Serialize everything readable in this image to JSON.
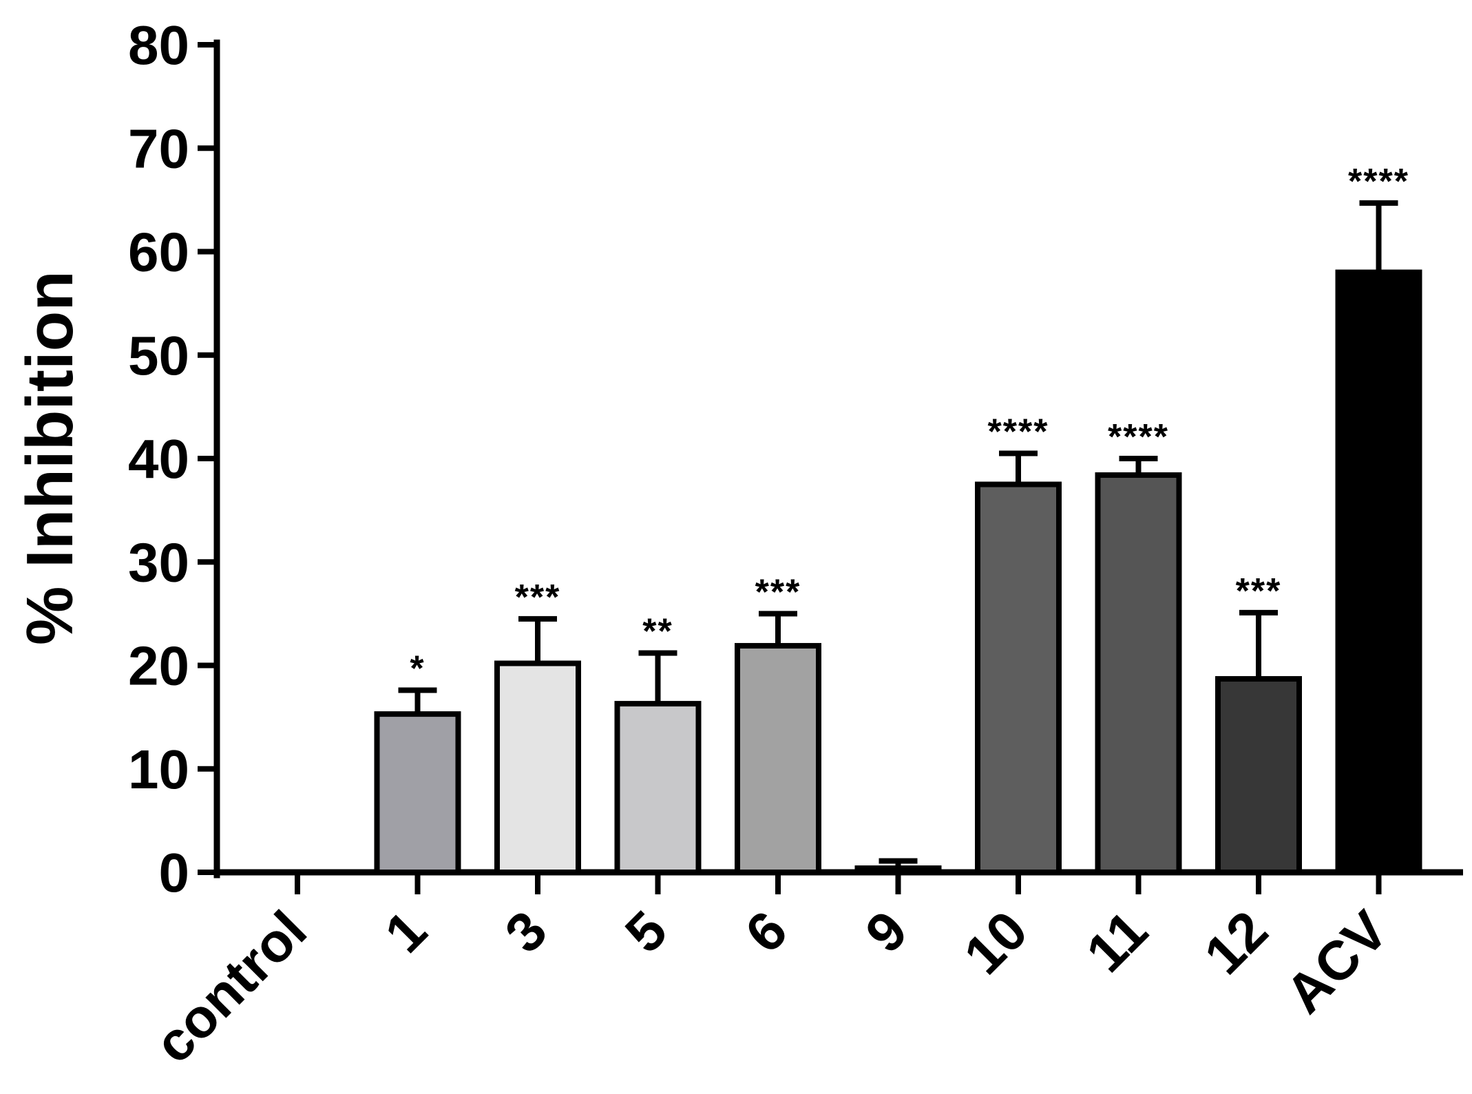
{
  "chart_data": {
    "type": "bar",
    "title": "",
    "xlabel": "",
    "ylabel": "% Inhibition",
    "ylim": [
      0,
      80
    ],
    "yticks": [
      "0",
      "10",
      "20",
      "30",
      "40",
      "50",
      "60",
      "70",
      "80"
    ],
    "categories": [
      "control",
      "1",
      "3",
      "5",
      "6",
      "9",
      "10",
      "11",
      "12",
      "ACV"
    ],
    "values": [
      0,
      15.3,
      20.2,
      16.3,
      21.9,
      0.4,
      37.5,
      38.4,
      18.7,
      58.0
    ],
    "errors": [
      0,
      2.3,
      4.3,
      4.9,
      3.1,
      0.7,
      3.0,
      1.6,
      6.4,
      6.7
    ],
    "significance": [
      "",
      "*",
      "***",
      "**",
      "***",
      "",
      "****",
      "****",
      "***",
      "****"
    ],
    "colors": [
      "#ffffff",
      "#a0a0a6",
      "#e4e4e4",
      "#c8c8ca",
      "#a2a2a2",
      "#ffffff",
      "#5e5e5e",
      "#555555",
      "#373737",
      "#000000"
    ],
    "grid": false,
    "legend": "none"
  }
}
